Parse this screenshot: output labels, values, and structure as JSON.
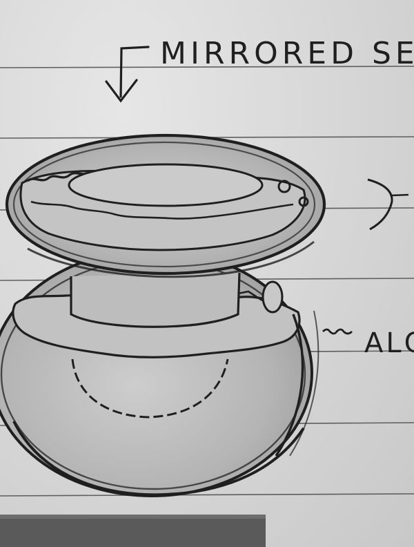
{
  "annotations": {
    "top_label": "MIRRORED SE",
    "side_label": "ALC"
  },
  "colors": {
    "paper": "#d9d9d9",
    "rule_line": "#4a4a4a",
    "pencil": "#1f1f1f",
    "shading": "#a9a9a9"
  }
}
